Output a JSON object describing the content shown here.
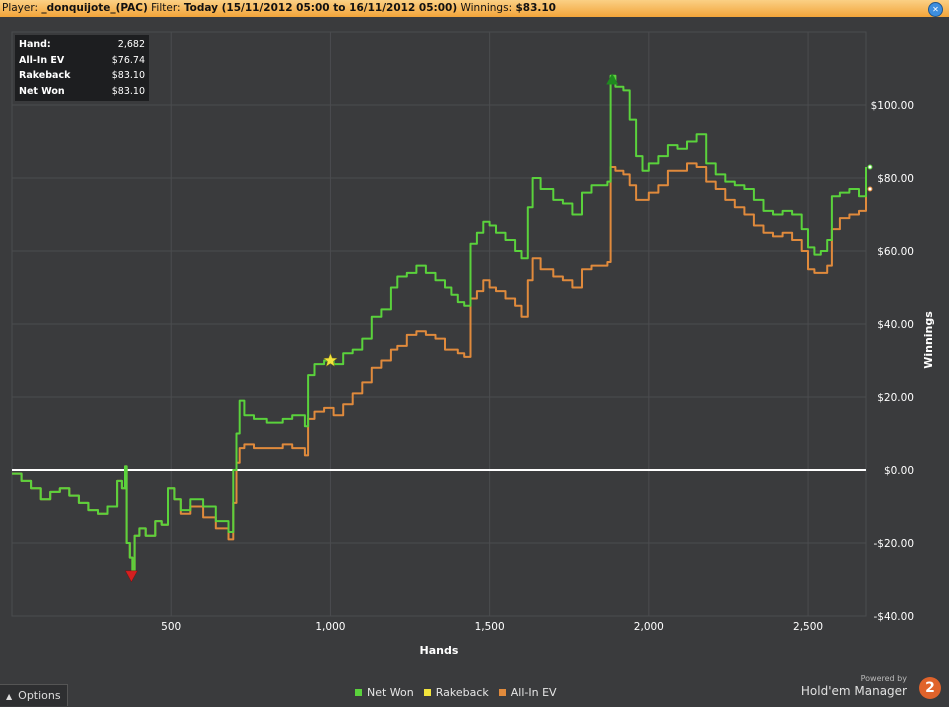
{
  "header": {
    "player_label": "Player:",
    "player_value": "_donquijote_(PAC)",
    "filter_label": "Filter:",
    "filter_value": "Today (15/11/2012 05:00 to 16/11/2012 05:00)",
    "winnings_label": "Winnings:",
    "winnings_value": "$83.10",
    "close_icon": "close-icon",
    "close_glyph": "✕"
  },
  "stats": [
    {
      "label": "Hand:",
      "value": "2,682"
    },
    {
      "label": "All-In EV",
      "value": "$76.74"
    },
    {
      "label": "Rakeback",
      "value": "$83.10"
    },
    {
      "label": "Net Won",
      "value": "$83.10"
    }
  ],
  "options": {
    "label": "Options",
    "icon": "chevron-up-icon",
    "glyph": "▲"
  },
  "brand": {
    "powered": "Powered by",
    "name": "Hold'em Manager",
    "badge": "2"
  },
  "colors": {
    "net_won": "#5ad23c",
    "rakeback": "#f2e43c",
    "allin_ev": "#e08a3c",
    "zero_line": "#ffffff",
    "background": "#3a3b3d",
    "grid": "#4b4c4f"
  },
  "chart_data": {
    "type": "line",
    "xlabel": "Hands",
    "ylabel": "Winnings",
    "xlim": [
      0,
      2682
    ],
    "ylim": [
      -40,
      120
    ],
    "x_ticks": [
      500,
      1000,
      1500,
      2000,
      2500
    ],
    "x_tick_labels": [
      "500",
      "1,000",
      "1,500",
      "2,000",
      "2,500"
    ],
    "y_ticks": [
      -40,
      -20,
      0,
      20,
      40,
      60,
      80,
      100
    ],
    "y_tick_labels": [
      "-$40.00",
      "-$20.00",
      "$0.00",
      "$20.00",
      "$40.00",
      "$60.00",
      "$80.00",
      "$100.00"
    ],
    "grid": true,
    "legend": "bottom-center",
    "series": [
      {
        "name": "Net Won",
        "color": "#5ad23c",
        "points": [
          [
            0,
            -1
          ],
          [
            30,
            -3
          ],
          [
            60,
            -5
          ],
          [
            90,
            -8
          ],
          [
            120,
            -6
          ],
          [
            150,
            -5
          ],
          [
            180,
            -7
          ],
          [
            210,
            -9
          ],
          [
            240,
            -11
          ],
          [
            270,
            -12
          ],
          [
            300,
            -10
          ],
          [
            330,
            -3
          ],
          [
            345,
            -5
          ],
          [
            355,
            1
          ],
          [
            360,
            -20
          ],
          [
            370,
            -24
          ],
          [
            378,
            -28
          ],
          [
            385,
            -18
          ],
          [
            400,
            -16
          ],
          [
            420,
            -18
          ],
          [
            450,
            -14
          ],
          [
            470,
            -15
          ],
          [
            490,
            -5
          ],
          [
            510,
            -8
          ],
          [
            530,
            -11
          ],
          [
            560,
            -8
          ],
          [
            600,
            -10
          ],
          [
            640,
            -14
          ],
          [
            680,
            -17
          ],
          [
            695,
            0
          ],
          [
            705,
            10
          ],
          [
            715,
            19
          ],
          [
            730,
            15
          ],
          [
            760,
            14
          ],
          [
            800,
            13
          ],
          [
            850,
            14
          ],
          [
            880,
            15
          ],
          [
            920,
            12
          ],
          [
            930,
            26
          ],
          [
            950,
            29
          ],
          [
            980,
            30
          ],
          [
            1010,
            29
          ],
          [
            1040,
            32
          ],
          [
            1070,
            33
          ],
          [
            1100,
            36
          ],
          [
            1130,
            42
          ],
          [
            1160,
            44
          ],
          [
            1190,
            50
          ],
          [
            1210,
            53
          ],
          [
            1240,
            54
          ],
          [
            1270,
            56
          ],
          [
            1300,
            54
          ],
          [
            1330,
            52
          ],
          [
            1360,
            50
          ],
          [
            1380,
            48
          ],
          [
            1400,
            46
          ],
          [
            1420,
            45
          ],
          [
            1440,
            62
          ],
          [
            1460,
            65
          ],
          [
            1480,
            68
          ],
          [
            1500,
            67
          ],
          [
            1520,
            65
          ],
          [
            1550,
            63
          ],
          [
            1580,
            60
          ],
          [
            1600,
            58
          ],
          [
            1620,
            72
          ],
          [
            1635,
            80
          ],
          [
            1660,
            77
          ],
          [
            1700,
            74
          ],
          [
            1730,
            73
          ],
          [
            1760,
            70
          ],
          [
            1790,
            76
          ],
          [
            1820,
            78
          ],
          [
            1850,
            78
          ],
          [
            1870,
            79
          ],
          [
            1880,
            108
          ],
          [
            1895,
            105
          ],
          [
            1920,
            104
          ],
          [
            1940,
            96
          ],
          [
            1960,
            86
          ],
          [
            1980,
            82
          ],
          [
            2000,
            84
          ],
          [
            2030,
            86
          ],
          [
            2060,
            89
          ],
          [
            2090,
            88
          ],
          [
            2120,
            90
          ],
          [
            2150,
            92
          ],
          [
            2180,
            84
          ],
          [
            2210,
            81
          ],
          [
            2240,
            79
          ],
          [
            2270,
            78
          ],
          [
            2300,
            77
          ],
          [
            2330,
            74
          ],
          [
            2360,
            71
          ],
          [
            2390,
            70
          ],
          [
            2420,
            71
          ],
          [
            2450,
            70
          ],
          [
            2480,
            66
          ],
          [
            2500,
            61
          ],
          [
            2520,
            59
          ],
          [
            2540,
            60
          ],
          [
            2560,
            63
          ],
          [
            2575,
            75
          ],
          [
            2600,
            76
          ],
          [
            2630,
            77
          ],
          [
            2660,
            75
          ],
          [
            2682,
            83
          ]
        ]
      },
      {
        "name": "Rakeback",
        "color": "#f2e43c",
        "points": []
      },
      {
        "name": "All-In EV",
        "color": "#e08a3c",
        "points": [
          [
            0,
            -1
          ],
          [
            30,
            -3
          ],
          [
            60,
            -5
          ],
          [
            90,
            -8
          ],
          [
            120,
            -6
          ],
          [
            150,
            -5
          ],
          [
            180,
            -7
          ],
          [
            210,
            -9
          ],
          [
            240,
            -11
          ],
          [
            270,
            -12
          ],
          [
            300,
            -10
          ],
          [
            330,
            -3
          ],
          [
            345,
            -5
          ],
          [
            355,
            1
          ],
          [
            360,
            -20
          ],
          [
            370,
            -24
          ],
          [
            378,
            -28
          ],
          [
            385,
            -18
          ],
          [
            400,
            -16
          ],
          [
            420,
            -18
          ],
          [
            450,
            -14
          ],
          [
            470,
            -15
          ],
          [
            490,
            -5
          ],
          [
            510,
            -8
          ],
          [
            530,
            -12
          ],
          [
            560,
            -10
          ],
          [
            600,
            -13
          ],
          [
            640,
            -16
          ],
          [
            680,
            -19
          ],
          [
            695,
            -9
          ],
          [
            705,
            2
          ],
          [
            715,
            6
          ],
          [
            730,
            7
          ],
          [
            760,
            6
          ],
          [
            800,
            6
          ],
          [
            850,
            7
          ],
          [
            880,
            6
          ],
          [
            920,
            4
          ],
          [
            930,
            14
          ],
          [
            950,
            16
          ],
          [
            980,
            17
          ],
          [
            1010,
            15
          ],
          [
            1040,
            18
          ],
          [
            1070,
            21
          ],
          [
            1100,
            24
          ],
          [
            1130,
            28
          ],
          [
            1160,
            30
          ],
          [
            1190,
            33
          ],
          [
            1210,
            34
          ],
          [
            1240,
            37
          ],
          [
            1270,
            38
          ],
          [
            1300,
            37
          ],
          [
            1330,
            36
          ],
          [
            1360,
            33
          ],
          [
            1380,
            33
          ],
          [
            1400,
            32
          ],
          [
            1420,
            31
          ],
          [
            1440,
            47
          ],
          [
            1460,
            49
          ],
          [
            1480,
            52
          ],
          [
            1500,
            50
          ],
          [
            1520,
            49
          ],
          [
            1550,
            47
          ],
          [
            1580,
            45
          ],
          [
            1600,
            42
          ],
          [
            1620,
            52
          ],
          [
            1635,
            58
          ],
          [
            1660,
            55
          ],
          [
            1700,
            53
          ],
          [
            1730,
            52
          ],
          [
            1760,
            50
          ],
          [
            1790,
            55
          ],
          [
            1820,
            56
          ],
          [
            1850,
            56
          ],
          [
            1870,
            57
          ],
          [
            1880,
            83
          ],
          [
            1895,
            82
          ],
          [
            1920,
            81
          ],
          [
            1940,
            78
          ],
          [
            1960,
            74
          ],
          [
            1980,
            74
          ],
          [
            2000,
            76
          ],
          [
            2030,
            78
          ],
          [
            2060,
            82
          ],
          [
            2090,
            82
          ],
          [
            2120,
            84
          ],
          [
            2150,
            83
          ],
          [
            2180,
            79
          ],
          [
            2210,
            77
          ],
          [
            2240,
            74
          ],
          [
            2270,
            72
          ],
          [
            2300,
            70
          ],
          [
            2330,
            67
          ],
          [
            2360,
            65
          ],
          [
            2390,
            64
          ],
          [
            2420,
            65
          ],
          [
            2450,
            63
          ],
          [
            2480,
            60
          ],
          [
            2500,
            55
          ],
          [
            2520,
            54
          ],
          [
            2540,
            54
          ],
          [
            2560,
            56
          ],
          [
            2575,
            66
          ],
          [
            2600,
            69
          ],
          [
            2630,
            70
          ],
          [
            2660,
            71
          ],
          [
            2682,
            77
          ]
        ]
      }
    ],
    "markers": [
      {
        "type": "star",
        "x": 1000,
        "y": 30,
        "color": "#f2e43c"
      },
      {
        "type": "triangle-up",
        "x": 1885,
        "y": 107,
        "color": "#1f8a1f"
      },
      {
        "type": "triangle-down",
        "x": 375,
        "y": -29,
        "color": "#d42020"
      }
    ]
  }
}
